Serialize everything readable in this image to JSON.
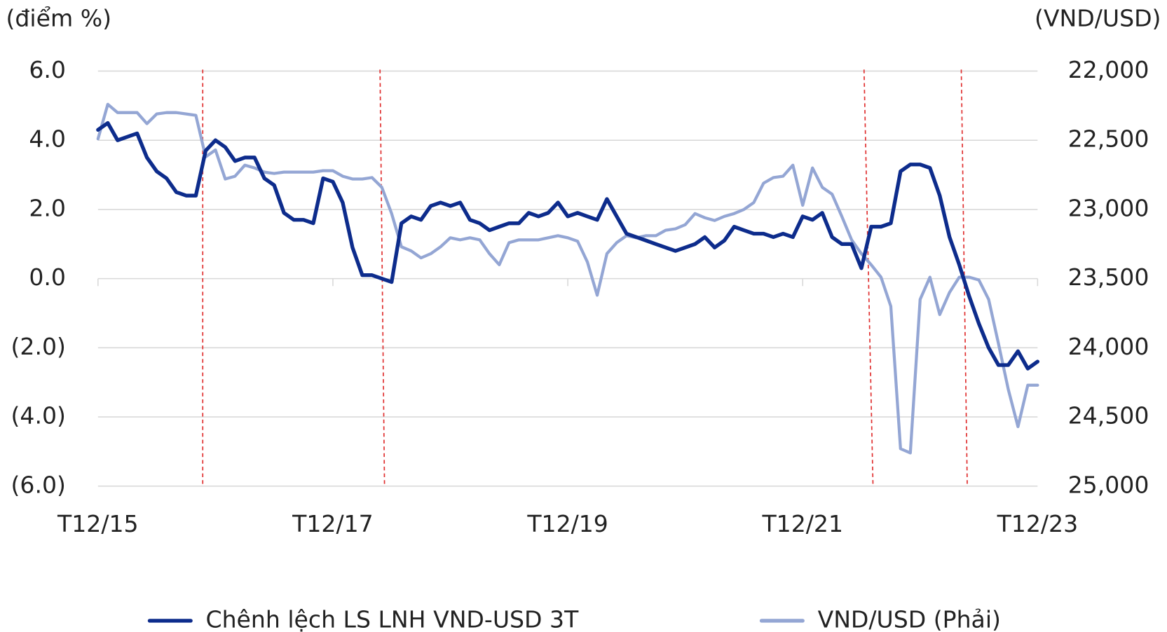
{
  "chart_data": {
    "type": "line",
    "y_axis_label": "(điểm %)",
    "y2_axis_label": "(VND/USD)",
    "categories": [
      "T12/15",
      null,
      null,
      null,
      null,
      null,
      null,
      null,
      null,
      null,
      null,
      null,
      null,
      null,
      null,
      null,
      null,
      null,
      null,
      null,
      null,
      null,
      null,
      null,
      "T12/17",
      null,
      null,
      null,
      null,
      null,
      null,
      null,
      null,
      null,
      null,
      null,
      null,
      null,
      null,
      null,
      null,
      null,
      null,
      null,
      null,
      null,
      null,
      null,
      "T12/19",
      null,
      null,
      null,
      null,
      null,
      null,
      null,
      null,
      null,
      null,
      null,
      null,
      null,
      null,
      null,
      null,
      null,
      null,
      null,
      null,
      null,
      null,
      null,
      "T12/21",
      null,
      null,
      null,
      null,
      null,
      null,
      null,
      null,
      null,
      null,
      null,
      null,
      null,
      null,
      null,
      null,
      null,
      null,
      null,
      null,
      null,
      null,
      null,
      "T12/23"
    ],
    "series": [
      {
        "name": "Chênh lệch LS LNH VND-USD 3T",
        "color": "#0d2c8c",
        "axis": "y",
        "values": [
          4.3,
          4.5,
          4.0,
          4.1,
          4.2,
          3.5,
          3.1,
          2.9,
          2.5,
          2.4,
          2.4,
          3.7,
          4.0,
          3.8,
          3.4,
          3.5,
          3.5,
          2.9,
          2.7,
          1.9,
          1.7,
          1.7,
          1.6,
          2.9,
          2.8,
          2.2,
          0.9,
          0.1,
          0.1,
          0.0,
          -0.1,
          1.6,
          1.8,
          1.7,
          2.1,
          2.2,
          2.1,
          2.2,
          1.7,
          1.6,
          1.4,
          1.5,
          1.6,
          1.6,
          1.9,
          1.8,
          1.9,
          2.2,
          1.8,
          1.9,
          1.8,
          1.7,
          2.3,
          1.8,
          1.3,
          1.2,
          1.1,
          1.0,
          0.9,
          0.8,
          0.9,
          1.0,
          1.2,
          0.9,
          1.1,
          1.5,
          1.4,
          1.3,
          1.3,
          1.2,
          1.3,
          1.2,
          1.8,
          1.7,
          1.9,
          1.2,
          1.0,
          1.0,
          0.3,
          1.5,
          1.5,
          1.6,
          3.1,
          3.3,
          3.3,
          3.2,
          2.4,
          1.2,
          0.4,
          -0.5,
          -1.3,
          -2.0,
          -2.5,
          -2.5,
          -2.1,
          -2.6,
          -2.4
        ]
      },
      {
        "name": "VND/USD (Phải)",
        "color": "#94a6d4",
        "axis": "y2",
        "values": [
          22490,
          22240,
          22300,
          22300,
          22300,
          22380,
          22310,
          22300,
          22300,
          22310,
          22320,
          22620,
          22570,
          22780,
          22760,
          22680,
          22700,
          22730,
          22740,
          22730,
          22730,
          22730,
          22730,
          22720,
          22720,
          22760,
          22780,
          22780,
          22770,
          22840,
          23030,
          23270,
          23300,
          23350,
          23320,
          23270,
          23205,
          23220,
          23205,
          23220,
          23320,
          23400,
          23240,
          23220,
          23220,
          23220,
          23205,
          23190,
          23205,
          23230,
          23380,
          23620,
          23320,
          23240,
          23190,
          23205,
          23190,
          23190,
          23150,
          23140,
          23110,
          23030,
          23060,
          23080,
          23050,
          23030,
          23000,
          22950,
          22810,
          22770,
          22760,
          22680,
          22970,
          22700,
          22840,
          22890,
          23050,
          23220,
          23320,
          23400,
          23490,
          23700,
          24730,
          24760,
          23650,
          23490,
          23760,
          23600,
          23490,
          23490,
          23510,
          23650,
          23970,
          24300,
          24570,
          24270,
          24270
        ]
      }
    ],
    "ylim": [
      -6,
      6
    ],
    "yticks": [
      {
        "value": 6,
        "label": "6.0"
      },
      {
        "value": 4,
        "label": "4.0"
      },
      {
        "value": 2,
        "label": "2.0"
      },
      {
        "value": 0,
        "label": "0.0"
      },
      {
        "value": -2,
        "label": "(2.0)"
      },
      {
        "value": -4,
        "label": "(4.0)"
      },
      {
        "value": -6,
        "label": "(6.0)"
      }
    ],
    "y2lim": [
      22000,
      25000
    ],
    "y2_inverted": true,
    "y2ticks": [
      {
        "value": 22000,
        "label": "22,000"
      },
      {
        "value": 22500,
        "label": "22,500"
      },
      {
        "value": 23000,
        "label": "23,000"
      },
      {
        "value": 23500,
        "label": "23,500"
      },
      {
        "value": 24000,
        "label": "24,000"
      },
      {
        "value": 24500,
        "label": "24,500"
      },
      {
        "value": 25000,
        "label": "25,000"
      }
    ],
    "grid": true,
    "legend": "bottom"
  }
}
